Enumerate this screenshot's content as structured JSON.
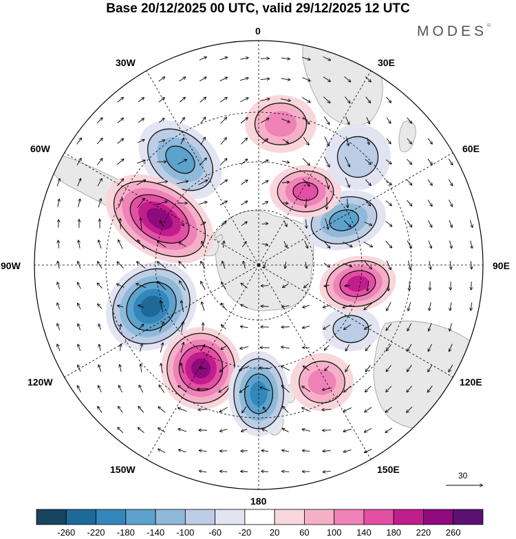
{
  "title": "Base 20/12/2025 00 UTC, valid 29/12/2025 12 UTC",
  "brand": "MODES",
  "brand_mark": "©",
  "longitude_labels": {
    "lon_0": "0",
    "lon_30e": "30E",
    "lon_60e": "60E",
    "lon_90e": "90E",
    "lon_120e": "120E",
    "lon_150e": "150E",
    "lon_180": "180",
    "lon_150w": "150W",
    "lon_120w": "120W",
    "lon_90w": "90W",
    "lon_60w": "60W",
    "lon_30w": "30W"
  },
  "reference_vector": {
    "value": "30"
  },
  "colorbar": {
    "labels": [
      "-260",
      "-220",
      "-180",
      "-140",
      "-100",
      "-60",
      "-20",
      "20",
      "60",
      "100",
      "140",
      "180",
      "220",
      "260"
    ],
    "colors": [
      "#17445f",
      "#1d6a98",
      "#3487bb",
      "#5ca2cc",
      "#8fb9d8",
      "#bccde5",
      "#e3e4f1",
      "#ffffff",
      "#f8d6dc",
      "#f5b0c8",
      "#ef82b6",
      "#e34fa3",
      "#c01d8d",
      "#8f0a7c",
      "#5b1072"
    ]
  },
  "anomaly_centers": [
    {
      "name": "neg-south-america",
      "value": -160
    },
    {
      "name": "pos-south-pacific-east",
      "value": 270
    },
    {
      "name": "neg-south-pacific",
      "value": -250
    },
    {
      "name": "pos-south-pacific-west",
      "value": 250
    },
    {
      "name": "neg-ross-sea",
      "value": -230
    },
    {
      "name": "pos-tasman",
      "value": 140
    },
    {
      "name": "neg-australia",
      "value": -80
    },
    {
      "name": "pos-indian-ocean-east",
      "value": 230
    },
    {
      "name": "neg-indian-ocean",
      "value": -180
    },
    {
      "name": "pos-southern-africa",
      "value": 180
    },
    {
      "name": "neg-madagascar",
      "value": -110
    },
    {
      "name": "pos-atlantic",
      "value": 130
    }
  ]
}
